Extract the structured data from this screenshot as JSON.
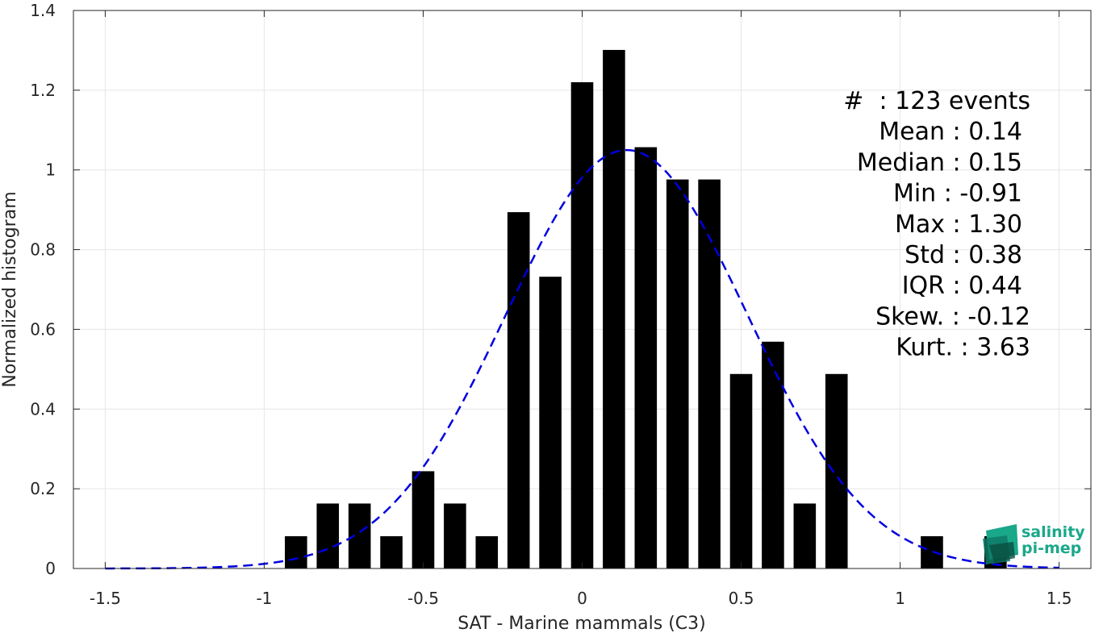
{
  "chart_data": {
    "type": "bar",
    "xlabel": "SAT - Marine mammals (C3)",
    "ylabel": "Normalized histogram",
    "xlim": [
      -1.6,
      1.6
    ],
    "ylim": [
      0,
      1.4
    ],
    "xticks": [
      "-1.5",
      "-1",
      "-0.5",
      "0",
      "0.5",
      "1",
      "1.5"
    ],
    "yticks": [
      "0",
      "0.2",
      "0.4",
      "0.6",
      "0.8",
      "1",
      "1.2",
      "1.4"
    ],
    "grid": true,
    "bar_color": "#000000",
    "bin_width": 0.1,
    "bar_width": 0.07,
    "bars": [
      {
        "x": -0.9,
        "y": 0.081
      },
      {
        "x": -0.8,
        "y": 0.163
      },
      {
        "x": -0.7,
        "y": 0.163
      },
      {
        "x": -0.6,
        "y": 0.081
      },
      {
        "x": -0.5,
        "y": 0.244
      },
      {
        "x": -0.4,
        "y": 0.163
      },
      {
        "x": -0.3,
        "y": 0.081
      },
      {
        "x": -0.2,
        "y": 0.894
      },
      {
        "x": -0.1,
        "y": 0.732
      },
      {
        "x": 0.0,
        "y": 1.22
      },
      {
        "x": 0.1,
        "y": 1.301
      },
      {
        "x": 0.2,
        "y": 1.057
      },
      {
        "x": 0.3,
        "y": 0.976
      },
      {
        "x": 0.4,
        "y": 0.976
      },
      {
        "x": 0.5,
        "y": 0.488
      },
      {
        "x": 0.6,
        "y": 0.569
      },
      {
        "x": 0.7,
        "y": 0.163
      },
      {
        "x": 0.8,
        "y": 0.488
      },
      {
        "x": 1.1,
        "y": 0.081
      },
      {
        "x": 1.3,
        "y": 0.081
      }
    ],
    "fit_curve": {
      "type": "gaussian",
      "mean": 0.14,
      "std": 0.38,
      "x_range": [
        -1.5,
        1.5
      ],
      "color": "#0000e0",
      "style": "dashed"
    },
    "annotations": [
      "#  : 123 events",
      "Mean : 0.14",
      "Median : 0.15",
      "Min : -0.91",
      "Max : 1.30",
      "Std : 0.38",
      "IQR : 0.44",
      "Skew. : -0.12",
      "Kurt. : 3.63"
    ]
  },
  "logo": {
    "line1": "salinity",
    "line2": "pi-mep",
    "color": "#1aa88a"
  }
}
